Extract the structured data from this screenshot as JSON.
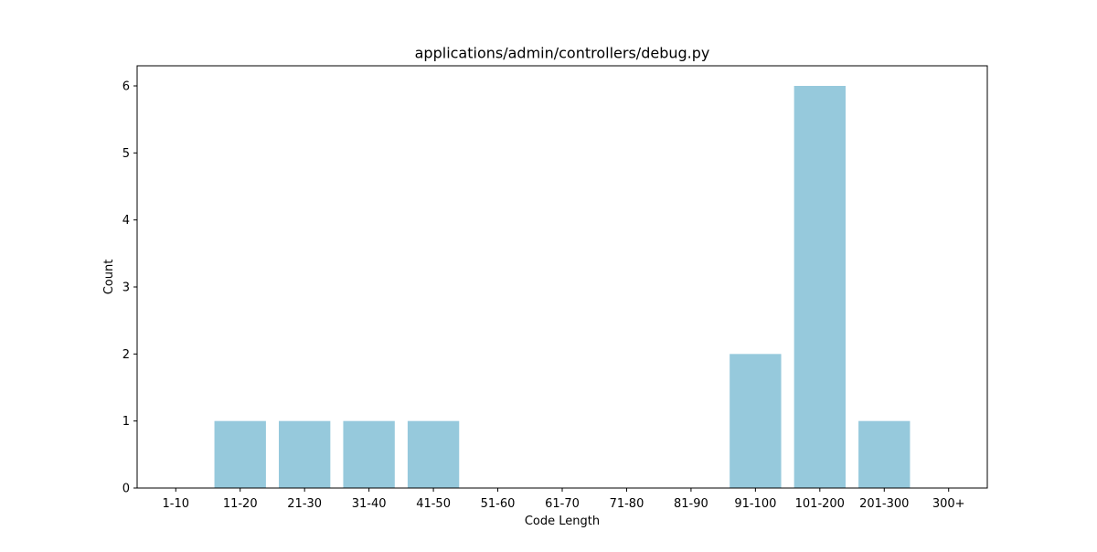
{
  "chart_data": {
    "type": "bar",
    "title": "applications/admin/controllers/debug.py",
    "xlabel": "Code Length",
    "ylabel": "Count",
    "categories": [
      "1-10",
      "11-20",
      "21-30",
      "31-40",
      "41-50",
      "51-60",
      "61-70",
      "71-80",
      "81-90",
      "91-100",
      "101-200",
      "201-300",
      "300+"
    ],
    "values": [
      0,
      1,
      1,
      1,
      1,
      0,
      0,
      0,
      0,
      2,
      6,
      1,
      0
    ],
    "ylim": [
      0,
      6.3
    ],
    "yticks": [
      0,
      1,
      2,
      3,
      4,
      5,
      6
    ],
    "bar_color": "#96c9dc",
    "grid": false,
    "legend": "none"
  }
}
